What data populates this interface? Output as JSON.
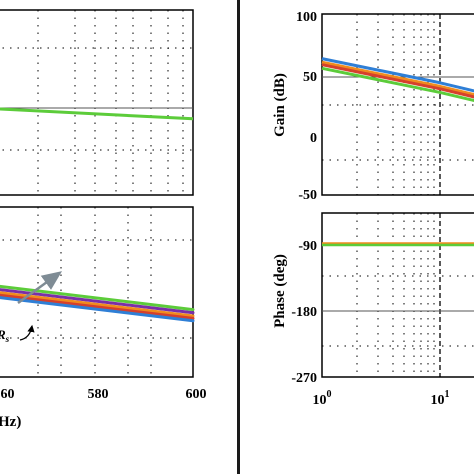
{
  "left_column": {
    "x_ticks": [
      "560",
      "580",
      "600"
    ],
    "x_label_fragment": "Hz)",
    "annotation": "R",
    "annotation_sub": "s"
  },
  "right_column": {
    "gain_label": "Gain (dB)",
    "phase_label": "Phase (deg)",
    "gain_ticks": [
      "100",
      "50",
      "0",
      "-50"
    ],
    "phase_ticks": [
      "-90",
      "-180",
      "-270"
    ],
    "x_ticks": [
      {
        "base": "10",
        "exp": "0"
      },
      {
        "base": "10",
        "exp": "1"
      }
    ]
  },
  "colors": {
    "green": "#5ccc3a",
    "purple": "#7a2fa8",
    "orange": "#f08c1e",
    "red": "#d6402c",
    "blue": "#2f7fd6",
    "arrow": "#7f8c95"
  },
  "chart_data": [
    {
      "type": "line",
      "panel": "left-top",
      "x": [
        550,
        600
      ],
      "series": [
        {
          "color": "green",
          "values": [
            0.0,
            -0.9
          ]
        }
      ]
    },
    {
      "type": "line",
      "panel": "left-bottom",
      "x": [
        550,
        600
      ],
      "series": [
        {
          "color": "green",
          "values": [
            1.0,
            -0.6
          ]
        },
        {
          "color": "purple",
          "values": [
            0.8,
            -0.8
          ]
        },
        {
          "color": "orange",
          "values": [
            0.6,
            -1.0
          ]
        },
        {
          "color": "red",
          "values": [
            0.45,
            -1.15
          ]
        },
        {
          "color": "blue",
          "values": [
            0.3,
            -1.3
          ]
        }
      ]
    },
    {
      "type": "line",
      "panel": "right-top",
      "xscale": "log",
      "xlabel": "",
      "ylabel": "Gain (dB)",
      "ylim": [
        -50,
        100
      ],
      "series": [
        {
          "color": "blue",
          "x": [
            1,
            10,
            20
          ],
          "values": [
            63,
            43,
            36
          ]
        },
        {
          "color": "orange",
          "x": [
            1,
            10,
            20
          ],
          "values": [
            60,
            40,
            33
          ]
        },
        {
          "color": "red",
          "x": [
            1,
            10,
            20
          ],
          "values": [
            58,
            38,
            31
          ]
        },
        {
          "color": "green",
          "x": [
            1,
            10,
            20
          ],
          "values": [
            55,
            35,
            28
          ]
        }
      ]
    },
    {
      "type": "line",
      "panel": "right-bottom",
      "xscale": "log",
      "xlabel": "",
      "ylabel": "Phase (deg)",
      "ylim": [
        -270,
        -45
      ],
      "series": [
        {
          "color": "orange",
          "x": [
            1,
            20
          ],
          "values": [
            -88,
            -88
          ]
        },
        {
          "color": "green",
          "x": [
            1,
            20
          ],
          "values": [
            -90,
            -90
          ]
        }
      ]
    }
  ]
}
